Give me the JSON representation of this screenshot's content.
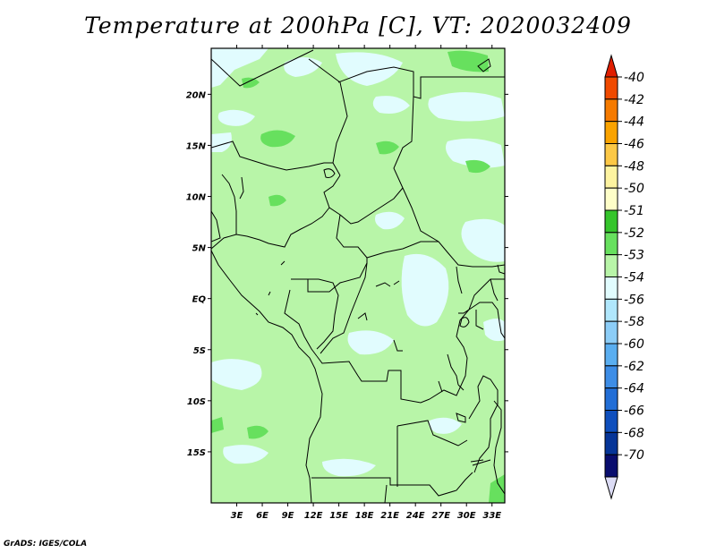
{
  "title": "Temperature at 200hPa [C], VT: 2020032409",
  "credit": "GrADS: IGES/COLA",
  "map": {
    "lon_range": [
      0,
      34.5
    ],
    "lat_range": [
      -20,
      24.5
    ],
    "lon_ticks": [
      "3E",
      "6E",
      "9E",
      "12E",
      "15E",
      "18E",
      "21E",
      "24E",
      "27E",
      "30E",
      "33E"
    ],
    "lat_ticks": [
      "20N",
      "15N",
      "10N",
      "5N",
      "EQ",
      "5S",
      "10S",
      "15S"
    ],
    "background_color": "#b8f5a8"
  },
  "colorbar": {
    "labels": [
      "-40",
      "-42",
      "-44",
      "-46",
      "-48",
      "-50",
      "-51",
      "-52",
      "-53",
      "-54",
      "-56",
      "-58",
      "-60",
      "-62",
      "-64",
      "-66",
      "-68",
      "-70"
    ],
    "colors": [
      "#e01e00",
      "#f04a00",
      "#f57a00",
      "#faa300",
      "#fcc846",
      "#fdf3a0",
      "#fefec8",
      "#35c52c",
      "#67e05e",
      "#b8f5a8",
      "#e1fcfe",
      "#b0e7fc",
      "#8ccdf7",
      "#5aaef0",
      "#3d8de6",
      "#226ed6",
      "#0f4fbd",
      "#063598",
      "#090d6e",
      "#dcdcf5"
    ]
  }
}
